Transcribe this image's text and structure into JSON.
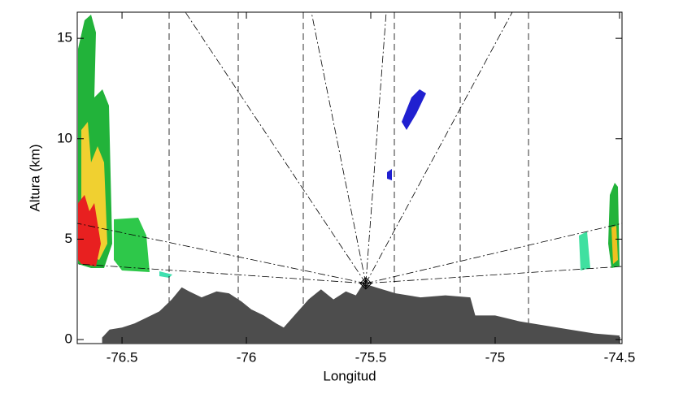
{
  "chart_data": {
    "type": "area",
    "xlabel": "Longitud",
    "ylabel": "Altura (km)",
    "xlim": [
      -76.68,
      -74.49
    ],
    "ylim": [
      -0.2,
      16.3
    ],
    "xticks": [
      -76.5,
      -76.0,
      -75.5,
      -75.0,
      -74.5
    ],
    "yticks": [
      0,
      5,
      10,
      15
    ],
    "series": [
      {
        "color": "#4d4d4d",
        "x": [
          -76.58,
          -76.55,
          -76.5,
          -76.45,
          -76.4,
          -76.35,
          -76.3,
          -76.26,
          -76.23,
          -76.18,
          -76.12,
          -76.07,
          -76.02,
          -75.98,
          -75.93,
          -75.88,
          -75.85,
          -75.8,
          -75.75,
          -75.7,
          -75.65,
          -75.6,
          -75.56,
          -75.53,
          -75.48,
          -75.4,
          -75.3,
          -75.2,
          -75.1,
          -75.08,
          -75.0,
          -74.9,
          -74.8,
          -74.7,
          -74.6,
          -74.5
        ],
        "values": [
          0.1,
          0.5,
          0.6,
          0.8,
          1.1,
          1.4,
          2.0,
          2.6,
          2.4,
          2.1,
          2.4,
          2.3,
          1.9,
          1.5,
          1.2,
          0.8,
          0.6,
          1.3,
          2.0,
          2.5,
          2.0,
          2.4,
          2.2,
          2.8,
          2.6,
          2.3,
          2.1,
          2.2,
          2.1,
          1.2,
          1.2,
          0.9,
          0.7,
          0.5,
          0.3,
          0.2
        ]
      }
    ],
    "markers": [
      {
        "x": -75.52,
        "y": 2.8
      }
    ]
  }
}
